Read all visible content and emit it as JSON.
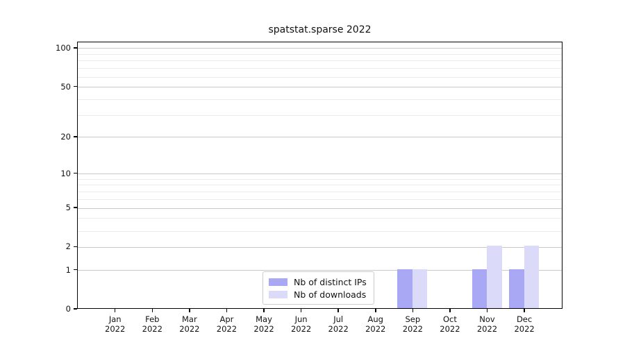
{
  "chart_data": {
    "type": "bar",
    "title": "spatstat.sparse 2022",
    "categories": [
      "Jan 2022",
      "Feb 2022",
      "Mar 2022",
      "Apr 2022",
      "May 2022",
      "Jun 2022",
      "Jul 2022",
      "Aug 2022",
      "Sep 2022",
      "Oct 2022",
      "Nov 2022",
      "Dec 2022"
    ],
    "series": [
      {
        "name": "Nb of distinct IPs",
        "color": "#a8a8f4",
        "values": [
          0,
          0,
          0,
          0,
          0,
          0,
          0,
          0,
          1,
          0,
          1,
          1
        ]
      },
      {
        "name": "Nb of downloads",
        "color": "#dbdbf9",
        "values": [
          0,
          0,
          0,
          0,
          0,
          0,
          0,
          0,
          1,
          0,
          2,
          2
        ]
      }
    ],
    "xlabel": "",
    "ylabel": "",
    "yscale": "log1p",
    "ylim": [
      0,
      112
    ],
    "y_major_ticks": [
      0,
      1,
      2,
      5,
      10,
      20,
      50,
      100
    ],
    "y_minor_gridlines": [
      3,
      4,
      6,
      7,
      8,
      9,
      30,
      40,
      60,
      70,
      80,
      90
    ],
    "grid": "horizontal",
    "legend_position": "inside-bottom-center",
    "colors": {
      "grid_major": "#c9c9c9",
      "grid_minor": "#ebebeb",
      "axis": "#000000",
      "background": "#ffffff"
    }
  }
}
